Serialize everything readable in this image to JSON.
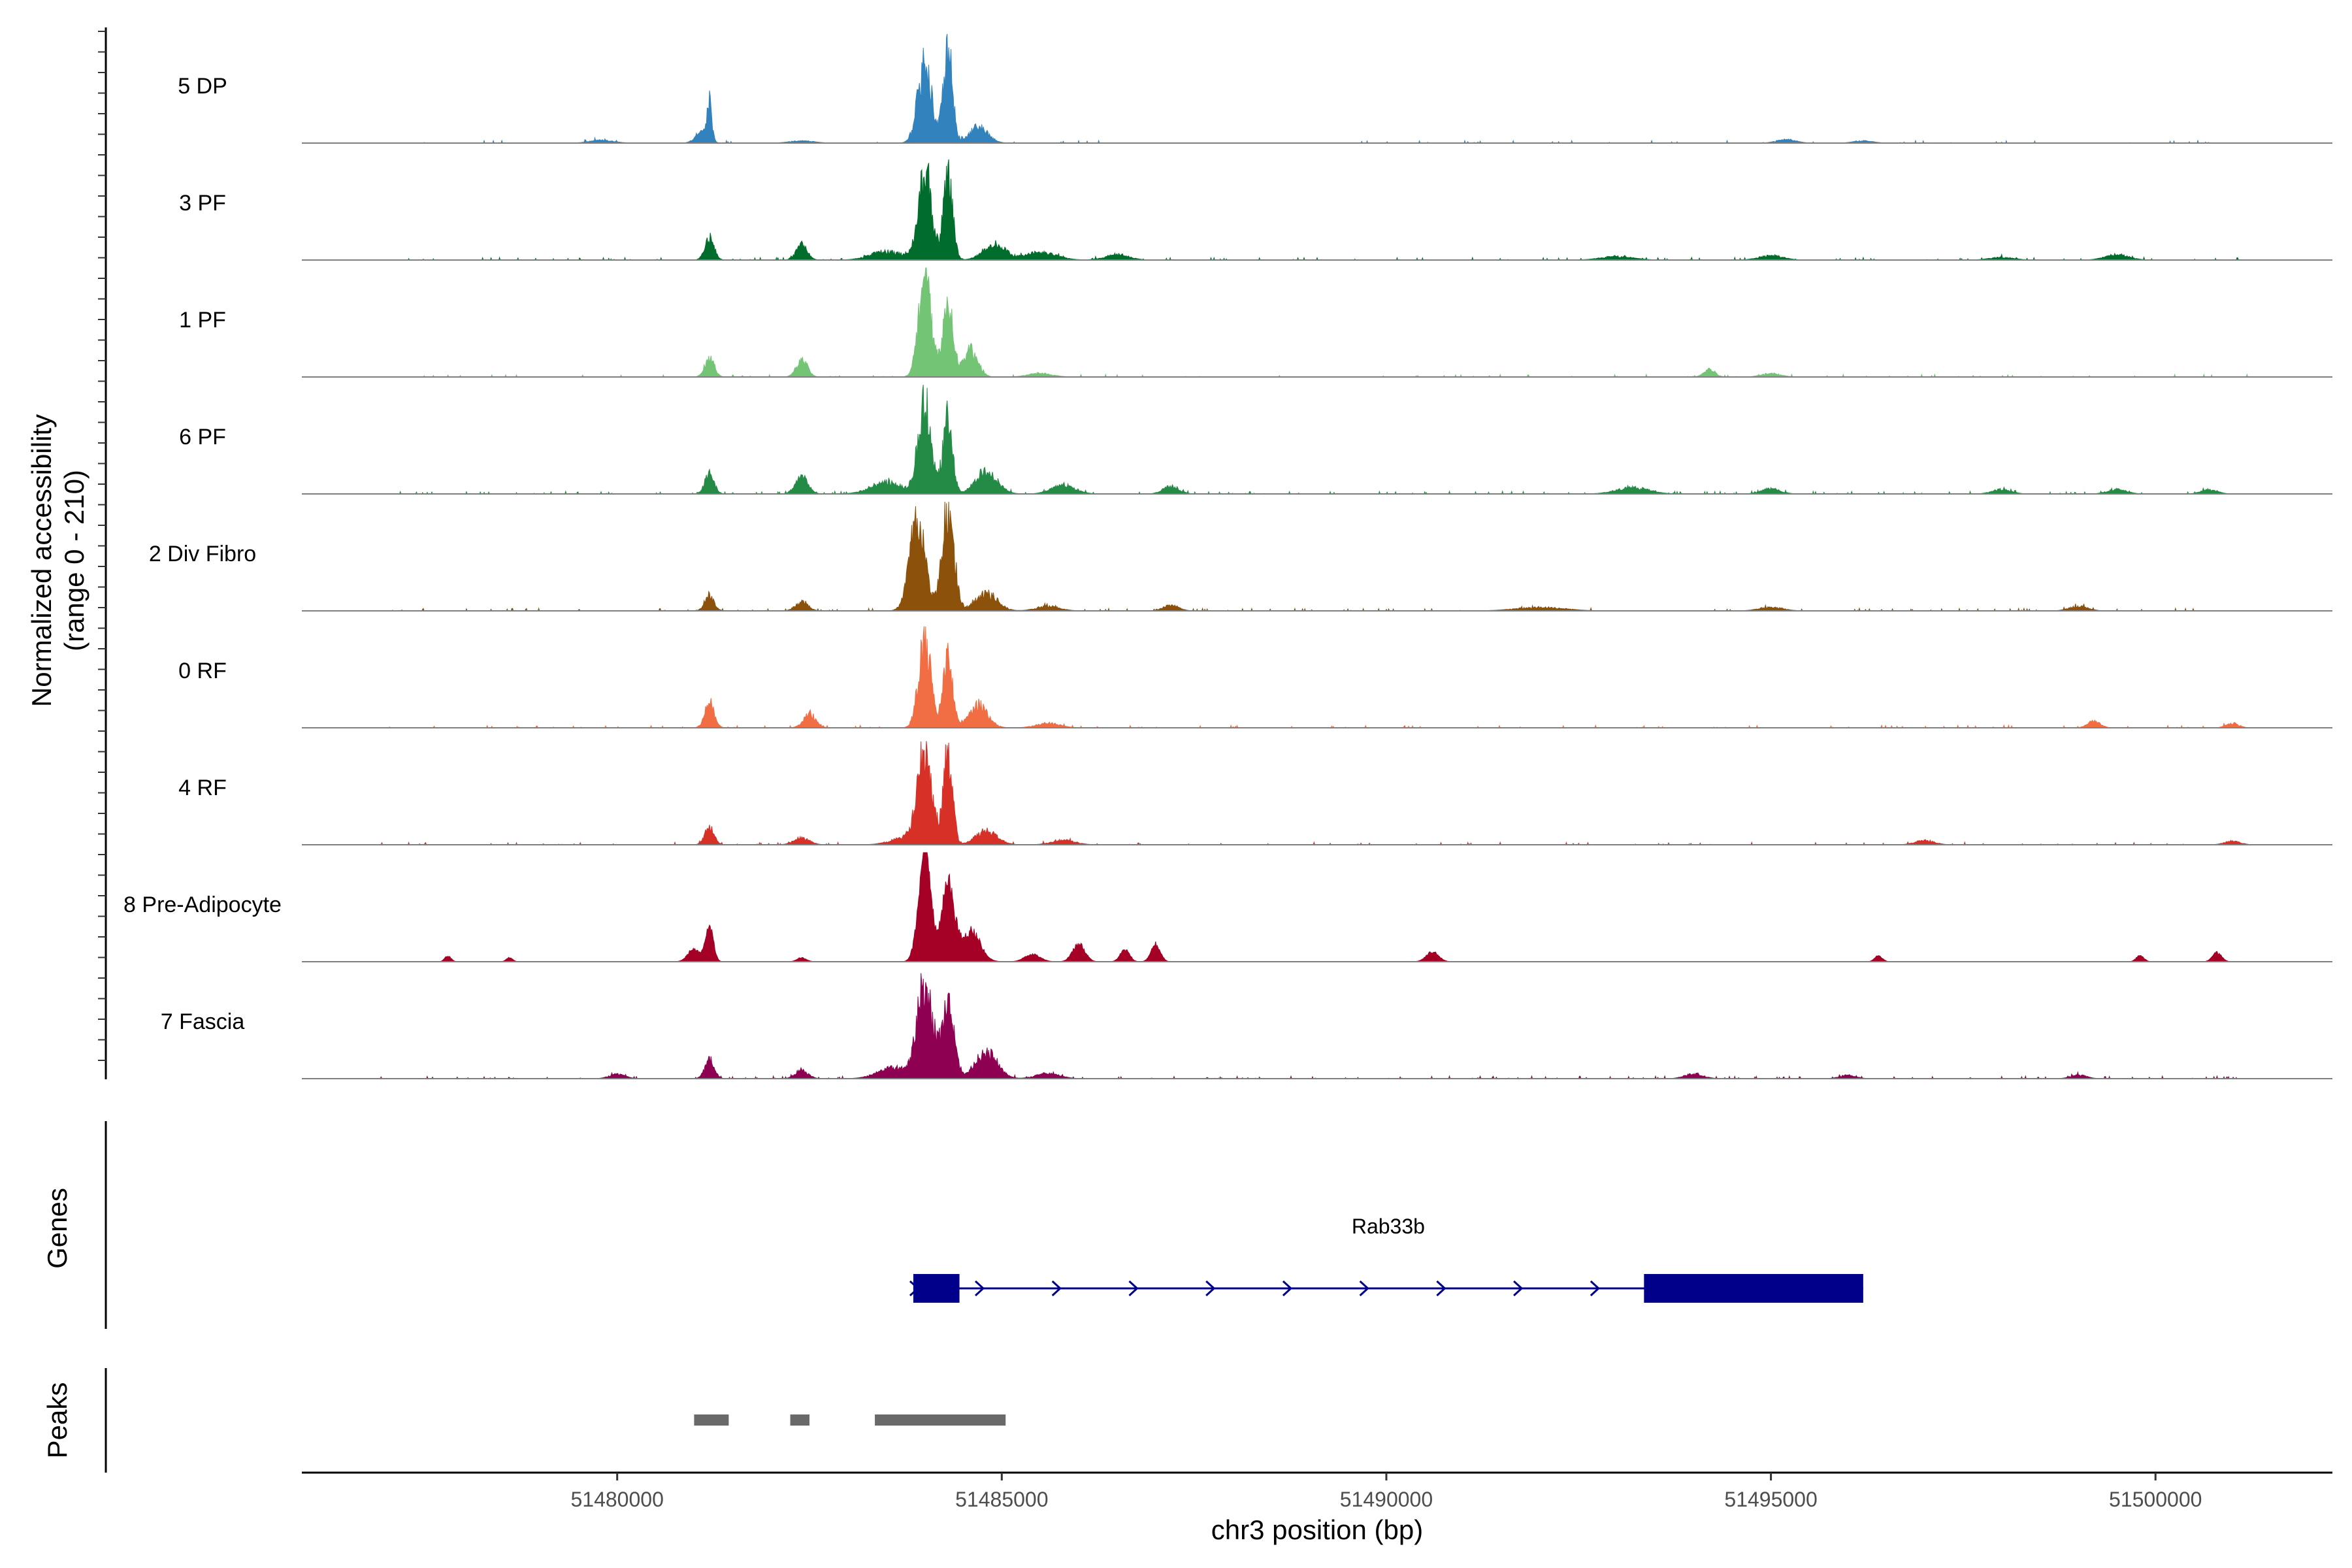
{
  "chart_data": {
    "type": "area",
    "ylabel_line1": "Normalized accessibility",
    "ylabel_line2": "(range 0 - 210)",
    "ylim": [
      0,
      210
    ],
    "xlabel": "chr3 position (bp)",
    "xlim": [
      51475900,
      51502300
    ],
    "xticks": [
      51480000,
      51485000,
      51490000,
      51495000,
      51500000
    ],
    "xtick_labels": [
      "51480000",
      "51485000",
      "51490000",
      "51495000",
      "51500000"
    ],
    "series": [
      {
        "name": "5 DP",
        "color": "#3182bd",
        "noise": 0.025,
        "cluster_scale": 1.0,
        "peaks": [
          [
            51481200,
            80,
            30
          ],
          [
            51481100,
            25,
            80
          ],
          [
            51484000,
            180,
            90
          ],
          [
            51484300,
            200,
            60
          ],
          [
            51484700,
            35,
            120
          ],
          [
            51479800,
            6,
            150
          ],
          [
            51482400,
            5,
            150
          ],
          [
            51495200,
            8,
            120
          ],
          [
            51496200,
            5,
            120
          ]
        ]
      },
      {
        "name": "3 PF",
        "color": "#006d2c",
        "noise": 0.05,
        "cluster_scale": 1.0,
        "peaks": [
          [
            51481200,
            50,
            60
          ],
          [
            51482400,
            35,
            70
          ],
          [
            51483500,
            20,
            200
          ],
          [
            51484000,
            190,
            90
          ],
          [
            51484300,
            190,
            60
          ],
          [
            51484900,
            35,
            140
          ],
          [
            51485500,
            18,
            200
          ],
          [
            51486500,
            12,
            150
          ],
          [
            51493000,
            8,
            200
          ],
          [
            51495000,
            10,
            150
          ],
          [
            51498000,
            6,
            150
          ],
          [
            51499500,
            12,
            150
          ]
        ]
      },
      {
        "name": "1 PF",
        "color": "#74c476",
        "noise": 0.03,
        "cluster_scale": 1.0,
        "peaks": [
          [
            51481200,
            45,
            60
          ],
          [
            51482400,
            40,
            70
          ],
          [
            51484000,
            220,
            80
          ],
          [
            51484300,
            160,
            70
          ],
          [
            51484600,
            60,
            90
          ],
          [
            51485500,
            8,
            150
          ],
          [
            51494200,
            18,
            70
          ],
          [
            51495000,
            8,
            120
          ]
        ]
      },
      {
        "name": "6 PF",
        "color": "#238b45",
        "noise": 0.06,
        "cluster_scale": 1.0,
        "peaks": [
          [
            51481200,
            45,
            60
          ],
          [
            51482400,
            40,
            80
          ],
          [
            51483500,
            25,
            200
          ],
          [
            51484000,
            190,
            90
          ],
          [
            51484300,
            170,
            60
          ],
          [
            51484800,
            50,
            140
          ],
          [
            51485800,
            20,
            150
          ],
          [
            51487200,
            18,
            100
          ],
          [
            51493200,
            15,
            200
          ],
          [
            51495000,
            12,
            120
          ],
          [
            51498000,
            10,
            120
          ],
          [
            51499500,
            10,
            120
          ],
          [
            51500700,
            10,
            100
          ]
        ]
      },
      {
        "name": "2 Div Fibro",
        "color": "#8c510a",
        "noise": 0.05,
        "cluster_scale": 1.0,
        "peaks": [
          [
            51481200,
            35,
            60
          ],
          [
            51482400,
            20,
            80
          ],
          [
            51483900,
            200,
            100
          ],
          [
            51484300,
            210,
            80
          ],
          [
            51484800,
            40,
            140
          ],
          [
            51485600,
            10,
            150
          ],
          [
            51487200,
            12,
            100
          ],
          [
            51492000,
            8,
            300
          ],
          [
            51495000,
            8,
            150
          ],
          [
            51499000,
            10,
            120
          ]
        ]
      },
      {
        "name": "0 RF",
        "color": "#f16d43",
        "noise": 0.04,
        "cluster_scale": 1.0,
        "peaks": [
          [
            51481200,
            60,
            60
          ],
          [
            51482500,
            30,
            80
          ],
          [
            51484000,
            200,
            80
          ],
          [
            51484300,
            160,
            60
          ],
          [
            51484700,
            50,
            120
          ],
          [
            51485600,
            10,
            150
          ],
          [
            51499200,
            15,
            80
          ],
          [
            51501000,
            10,
            80
          ]
        ]
      },
      {
        "name": "4 RF",
        "color": "#d73027",
        "noise": 0.04,
        "cluster_scale": 1.0,
        "peaks": [
          [
            51481200,
            40,
            60
          ],
          [
            51482400,
            15,
            100
          ],
          [
            51483800,
            20,
            200
          ],
          [
            51484000,
            200,
            90
          ],
          [
            51484300,
            190,
            60
          ],
          [
            51484800,
            30,
            140
          ],
          [
            51485800,
            10,
            150
          ],
          [
            51497000,
            10,
            120
          ],
          [
            51501000,
            8,
            100
          ]
        ]
      },
      {
        "name": "8 Pre-Adipocyte",
        "color": "#a50026",
        "noise": 0.0,
        "cluster_scale": 0.55,
        "peaks": [
          [
            51481200,
            70,
            50
          ],
          [
            51481000,
            25,
            80
          ],
          [
            51484000,
            220,
            80
          ],
          [
            51484300,
            160,
            80
          ],
          [
            51484600,
            60,
            120
          ],
          [
            51485400,
            15,
            100
          ],
          [
            51486000,
            35,
            80
          ],
          [
            51486600,
            25,
            60
          ],
          [
            51487000,
            35,
            60
          ],
          [
            51477800,
            12,
            40
          ],
          [
            51478600,
            8,
            40
          ],
          [
            51482400,
            8,
            60
          ],
          [
            51490600,
            20,
            80
          ],
          [
            51496400,
            12,
            50
          ],
          [
            51499800,
            12,
            50
          ],
          [
            51500800,
            18,
            60
          ]
        ]
      },
      {
        "name": "7 Fascia",
        "color": "#8e0152",
        "noise": 0.06,
        "cluster_scale": 1.0,
        "peaks": [
          [
            51481200,
            45,
            60
          ],
          [
            51482400,
            20,
            80
          ],
          [
            51483600,
            25,
            200
          ],
          [
            51484000,
            200,
            100
          ],
          [
            51484300,
            170,
            80
          ],
          [
            51484800,
            60,
            140
          ],
          [
            51485600,
            12,
            150
          ],
          [
            51480000,
            10,
            100
          ],
          [
            51494000,
            10,
            120
          ],
          [
            51496000,
            8,
            100
          ],
          [
            51499000,
            8,
            100
          ]
        ]
      }
    ],
    "genes_title": "Genes",
    "gene": {
      "name": "Rab33b",
      "start": 51483850,
      "end": 51496200,
      "strand": "+",
      "exons": [
        [
          51483850,
          51484450
        ],
        [
          51493350,
          51496200
        ]
      ],
      "arrows": [
        51483850,
        51484700,
        51485700,
        51486700,
        51487700,
        51488700,
        51489700,
        51490700,
        51491700,
        51492700
      ],
      "color": "#00008b"
    },
    "peaks_title": "Peaks",
    "peak_regions": [
      [
        51481000,
        51481450
      ],
      [
        51482250,
        51482500
      ],
      [
        51483350,
        51485050
      ]
    ],
    "peak_color": "#696969"
  }
}
